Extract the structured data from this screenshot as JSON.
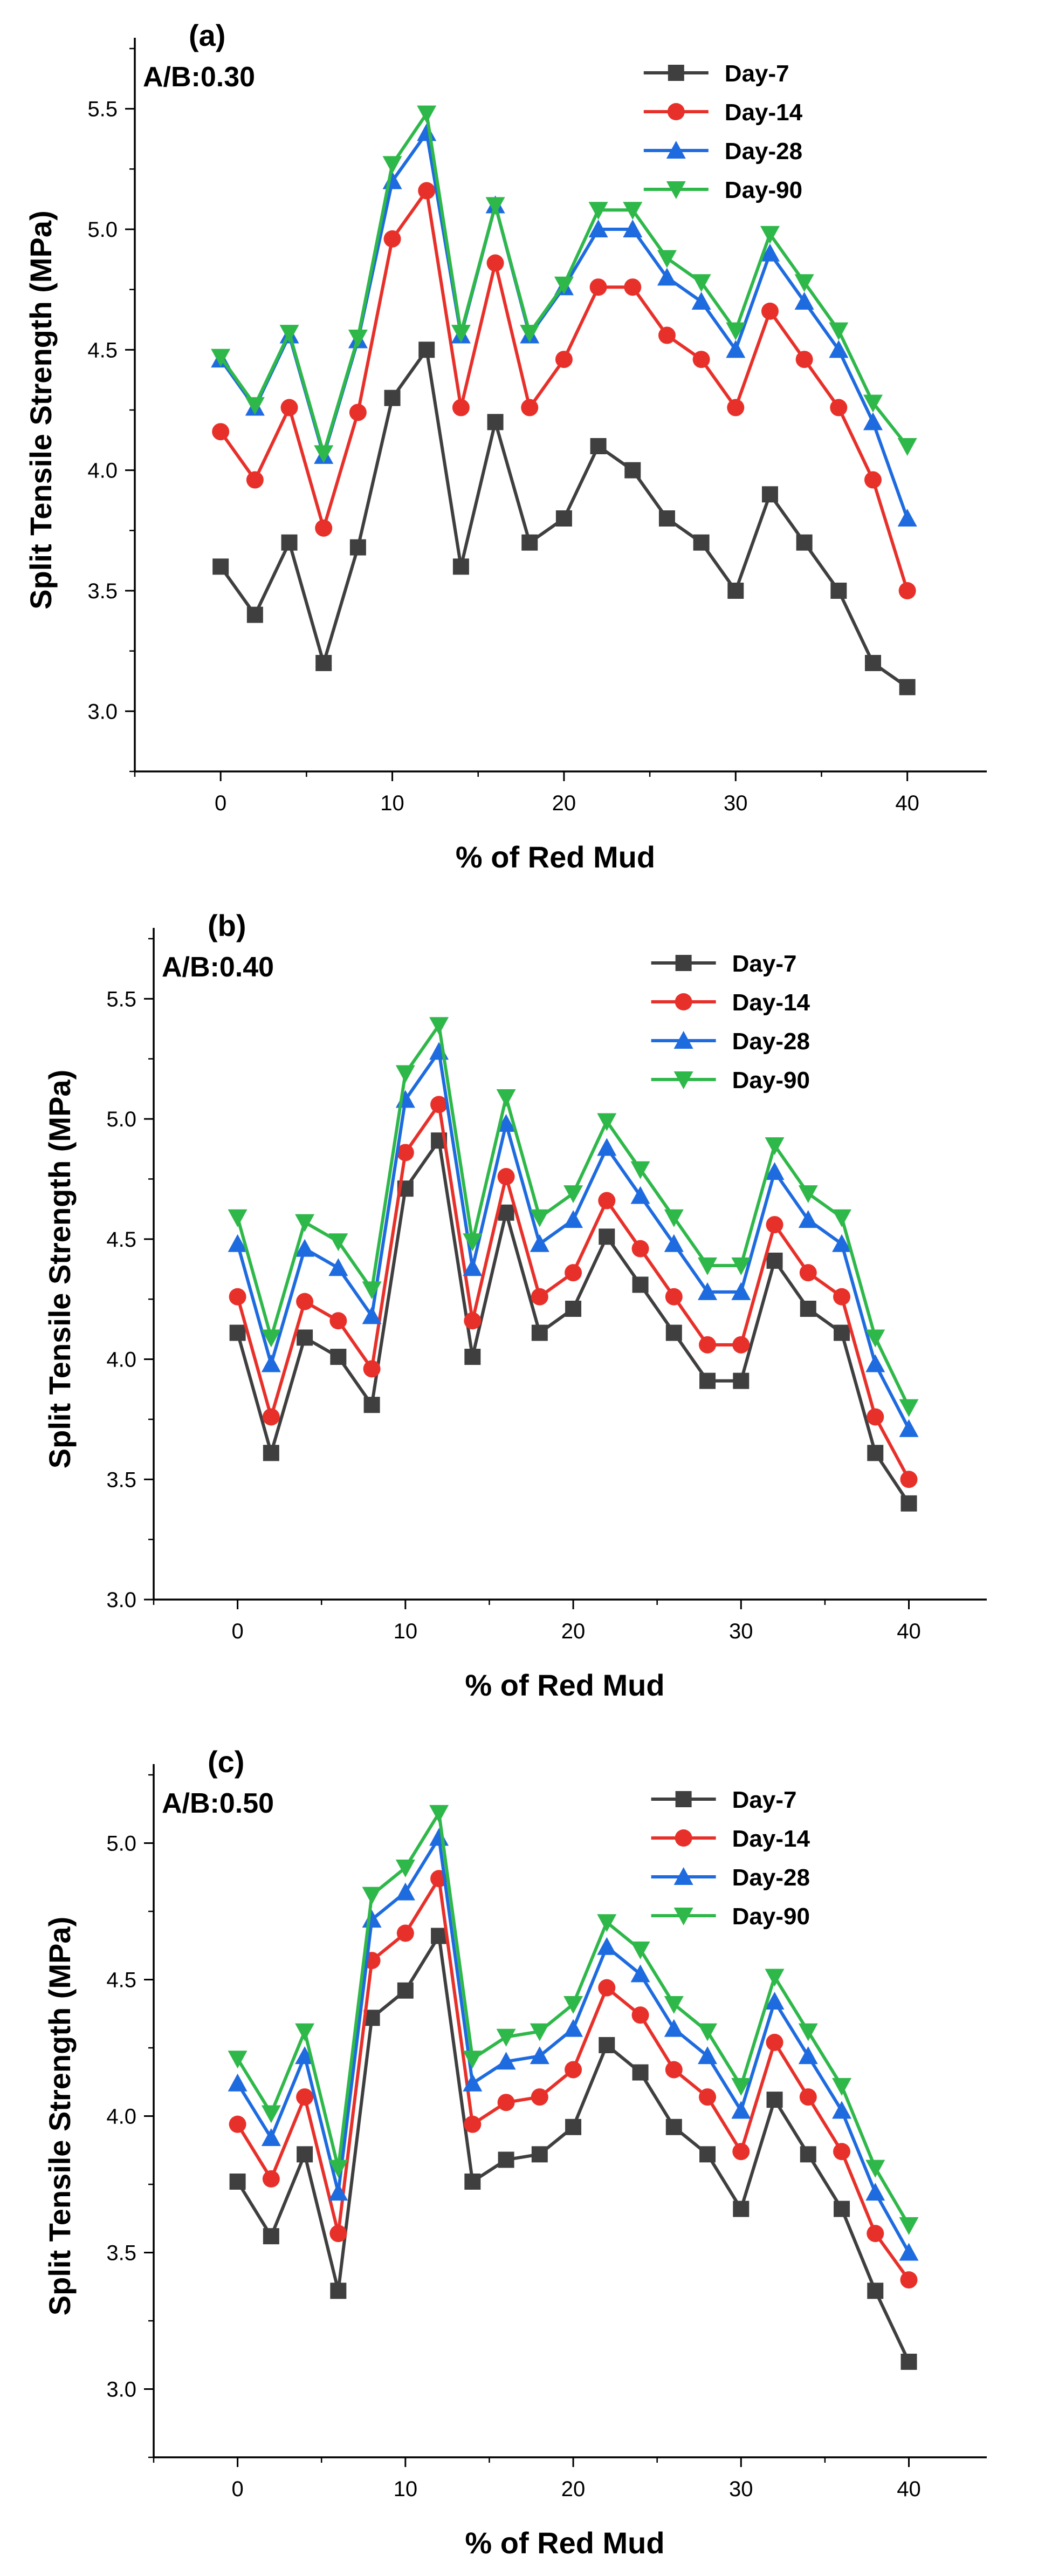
{
  "figure": {
    "background": "#ffffff"
  },
  "series_styles": [
    {
      "name": "Day-7",
      "color": "#3f3f3f",
      "marker": "square"
    },
    {
      "name": "Day-14",
      "color": "#e8302a",
      "marker": "circle"
    },
    {
      "name": "Day-28",
      "color": "#1e6be0",
      "marker": "triangle-up"
    },
    {
      "name": "Day-90",
      "color": "#2fb84a",
      "marker": "triangle-down"
    }
  ],
  "chart_data": [
    {
      "type": "line",
      "panel_label": "(a)",
      "ratio_label": "A/B:0.30",
      "xlabel": "% of Red Mud",
      "ylabel": "Split Tensile Strength (MPa)",
      "xlim": [
        -5,
        44
      ],
      "ylim": [
        2.75,
        5.75
      ],
      "xticks": [
        0,
        10,
        20,
        30,
        40
      ],
      "xtick_labels": [
        "0",
        "10",
        "20",
        "30",
        "40"
      ],
      "yticks": [
        3.0,
        3.5,
        4.0,
        4.5,
        5.0,
        5.5
      ],
      "ytick_labels": [
        "3.0",
        "3.5",
        "4.0",
        "4.5",
        "5.0",
        "5.5"
      ],
      "legend_position": "top-right",
      "x": [
        0,
        2,
        4,
        6,
        8,
        10,
        12,
        14,
        16,
        18,
        20,
        22,
        24,
        26,
        28,
        30,
        32,
        34,
        36,
        38,
        40
      ],
      "series": [
        {
          "name": "Day-7",
          "values": [
            3.6,
            3.4,
            3.7,
            3.2,
            3.68,
            4.3,
            4.5,
            3.6,
            4.2,
            3.7,
            3.8,
            4.1,
            4.0,
            3.8,
            3.7,
            3.5,
            3.9,
            3.7,
            3.5,
            3.2,
            3.1
          ]
        },
        {
          "name": "Day-14",
          "values": [
            4.16,
            3.96,
            4.26,
            3.76,
            4.24,
            4.96,
            5.16,
            4.26,
            4.86,
            4.26,
            4.46,
            4.76,
            4.76,
            4.56,
            4.46,
            4.26,
            4.66,
            4.46,
            4.26,
            3.96,
            3.5
          ]
        },
        {
          "name": "Day-28",
          "values": [
            4.46,
            4.26,
            4.56,
            4.06,
            4.54,
            5.2,
            5.4,
            4.56,
            5.1,
            4.56,
            4.76,
            5.0,
            5.0,
            4.8,
            4.7,
            4.5,
            4.9,
            4.7,
            4.5,
            4.2,
            3.8
          ]
        },
        {
          "name": "Day-90",
          "values": [
            4.47,
            4.27,
            4.57,
            4.07,
            4.55,
            5.27,
            5.48,
            4.57,
            5.1,
            4.57,
            4.77,
            5.08,
            5.08,
            4.88,
            4.78,
            4.58,
            4.98,
            4.78,
            4.58,
            4.28,
            4.1
          ]
        }
      ]
    },
    {
      "type": "line",
      "panel_label": "(b)",
      "ratio_label": "A/B:0.40",
      "xlabel": "% of Red Mud",
      "ylabel": "Split Tensile Strength (MPa)",
      "xlim": [
        -5,
        44
      ],
      "ylim": [
        3.0,
        5.75
      ],
      "xticks": [
        0,
        10,
        20,
        30,
        40
      ],
      "xtick_labels": [
        "0",
        "10",
        "20",
        "30",
        "40"
      ],
      "yticks": [
        3.0,
        3.5,
        4.0,
        4.5,
        5.0,
        5.5
      ],
      "ytick_labels": [
        "3.0",
        "3.5",
        "4.0",
        "4.5",
        "5.0",
        "5.5"
      ],
      "legend_position": "top-right",
      "x": [
        0,
        2,
        4,
        6,
        8,
        10,
        12,
        14,
        16,
        18,
        20,
        22,
        24,
        26,
        28,
        30,
        32,
        34,
        36,
        38,
        40
      ],
      "series": [
        {
          "name": "Day-7",
          "values": [
            4.11,
            3.61,
            4.09,
            4.01,
            3.81,
            4.71,
            4.91,
            4.01,
            4.61,
            4.11,
            4.21,
            4.51,
            4.31,
            4.11,
            3.91,
            3.91,
            4.41,
            4.21,
            4.11,
            3.61,
            3.4
          ]
        },
        {
          "name": "Day-14",
          "values": [
            4.26,
            3.76,
            4.24,
            4.16,
            3.96,
            4.86,
            5.06,
            4.16,
            4.76,
            4.26,
            4.36,
            4.66,
            4.46,
            4.26,
            4.06,
            4.06,
            4.56,
            4.36,
            4.26,
            3.76,
            3.5
          ]
        },
        {
          "name": "Day-28",
          "values": [
            4.48,
            3.98,
            4.46,
            4.38,
            4.18,
            5.08,
            5.28,
            4.38,
            4.98,
            4.48,
            4.58,
            4.88,
            4.68,
            4.48,
            4.28,
            4.28,
            4.78,
            4.58,
            4.48,
            3.98,
            3.71
          ]
        },
        {
          "name": "Day-90",
          "values": [
            4.59,
            4.09,
            4.57,
            4.49,
            4.29,
            5.19,
            5.39,
            4.49,
            5.09,
            4.59,
            4.69,
            4.99,
            4.79,
            4.59,
            4.39,
            4.39,
            4.89,
            4.69,
            4.59,
            4.09,
            3.8
          ]
        }
      ]
    },
    {
      "type": "line",
      "panel_label": "(c)",
      "ratio_label": "A/B:0.50",
      "xlabel": "% of Red Mud",
      "ylabel": "Split Tensile Strength (MPa)",
      "xlim": [
        -5,
        44
      ],
      "ylim": [
        2.75,
        5.25
      ],
      "xticks": [
        0,
        10,
        20,
        30,
        40
      ],
      "xtick_labels": [
        "0",
        "10",
        "20",
        "30",
        "40"
      ],
      "yticks": [
        3.0,
        3.5,
        4.0,
        4.5,
        5.0
      ],
      "ytick_labels": [
        "3.0",
        "3.5",
        "4.0",
        "4.5",
        "5.0"
      ],
      "legend_position": "top-right",
      "x": [
        0,
        2,
        4,
        6,
        8,
        10,
        12,
        14,
        16,
        18,
        20,
        22,
        24,
        26,
        28,
        30,
        32,
        34,
        36,
        38,
        40
      ],
      "series": [
        {
          "name": "Day-7",
          "values": [
            3.76,
            3.56,
            3.86,
            3.36,
            4.36,
            4.46,
            4.66,
            3.76,
            3.84,
            3.86,
            3.96,
            4.26,
            4.16,
            3.96,
            3.86,
            3.66,
            4.06,
            3.86,
            3.66,
            3.36,
            3.1
          ]
        },
        {
          "name": "Day-14",
          "values": [
            3.97,
            3.77,
            4.07,
            3.57,
            4.57,
            4.67,
            4.87,
            3.97,
            4.05,
            4.07,
            4.17,
            4.47,
            4.37,
            4.17,
            4.07,
            3.87,
            4.27,
            4.07,
            3.87,
            3.57,
            3.4
          ]
        },
        {
          "name": "Day-28",
          "values": [
            4.12,
            3.92,
            4.22,
            3.72,
            4.72,
            4.82,
            5.02,
            4.12,
            4.2,
            4.22,
            4.32,
            4.62,
            4.52,
            4.32,
            4.22,
            4.02,
            4.42,
            4.22,
            4.02,
            3.72,
            3.5
          ]
        },
        {
          "name": "Day-90",
          "values": [
            4.21,
            4.01,
            4.31,
            3.81,
            4.81,
            4.91,
            5.11,
            4.21,
            4.29,
            4.31,
            4.41,
            4.71,
            4.61,
            4.41,
            4.31,
            4.11,
            4.51,
            4.31,
            4.11,
            3.81,
            3.6
          ]
        }
      ]
    }
  ]
}
